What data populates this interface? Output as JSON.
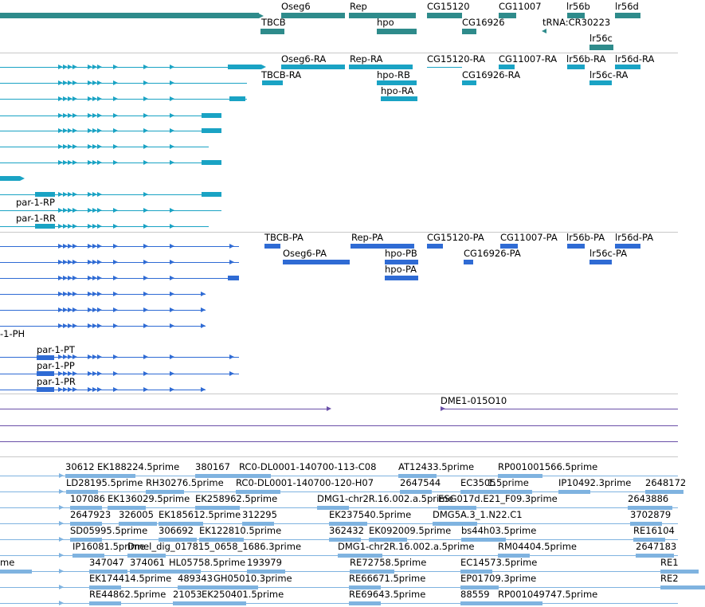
{
  "colors": {
    "gene": "#2e8b8b",
    "transcript": "#1aa3c4",
    "protein": "#2f6bd4",
    "clone": "#6a4fa8",
    "est": "#7fb3e0",
    "separator": "#c8c8c8"
  },
  "tracks": [
    {
      "name": "gene-track",
      "color": "gene",
      "features": [
        {
          "label": "Oseg6"
        },
        {
          "label": "Rep"
        },
        {
          "label": "CG15120"
        },
        {
          "label": "CG11007"
        },
        {
          "label": "lr56b"
        },
        {
          "label": "lr56d"
        },
        {
          "label": "TBCB"
        },
        {
          "label": "hpo"
        },
        {
          "label": "CG16926"
        },
        {
          "label": "tRNA:CR30223"
        },
        {
          "label": "lr56c"
        }
      ]
    },
    {
      "name": "transcript-track",
      "color": "transcript",
      "features": [
        {
          "label": "Oseg6-RA"
        },
        {
          "label": "Rep-RA"
        },
        {
          "label": "CG15120-RA"
        },
        {
          "label": "CG11007-RA"
        },
        {
          "label": "lr56b-RA"
        },
        {
          "label": "lr56d-RA"
        },
        {
          "label": "TBCB-RA"
        },
        {
          "label": "hpo-RB"
        },
        {
          "label": "CG16926-RA"
        },
        {
          "label": "lr56c-RA"
        },
        {
          "label": "hpo-RA"
        },
        {
          "label": "par-1-RP"
        },
        {
          "label": "par-1-RR"
        }
      ]
    },
    {
      "name": "protein-track",
      "color": "protein",
      "features": [
        {
          "label": "TBCB-PA"
        },
        {
          "label": "Rep-PA"
        },
        {
          "label": "CG15120-PA"
        },
        {
          "label": "CG11007-PA"
        },
        {
          "label": "lr56b-PA"
        },
        {
          "label": "lr56d-PA"
        },
        {
          "label": "Oseg6-PA"
        },
        {
          "label": "hpo-PB"
        },
        {
          "label": "CG16926-PA"
        },
        {
          "label": "lr56c-PA"
        },
        {
          "label": "hpo-PA"
        },
        {
          "label": "-1-PH"
        },
        {
          "label": "par-1-PT"
        },
        {
          "label": "par-1-PP"
        },
        {
          "label": "par-1-PR"
        }
      ]
    },
    {
      "name": "clone-track",
      "color": "clone",
      "features": [
        {
          "label": "DME1-015O10"
        }
      ]
    },
    {
      "name": "est-track",
      "color": "est",
      "rows": [
        [
          "30612",
          "EK188224.5prime",
          "380167",
          "RC0-DL0001-140700-113-C08",
          "AT12433.5prime",
          "RP001001566.5prime"
        ],
        [
          "LD28195.5prime",
          "RH30276.5prime",
          "RC0-DL0001-140700-120-H07",
          "2647544",
          "EC3505",
          "1.5prime",
          "IP10492.3prime",
          "2648172"
        ],
        [
          "107086",
          "EK136029.5prime",
          "EK258962.5prime",
          "DMG1-chr2R.16.002.a.5prime",
          "ESG017d.E21_F09.3prime",
          "2643886"
        ],
        [
          "2647923",
          "326005",
          "EK185612.5prime",
          "312295",
          "EK237540.5prime",
          "DMG5A.3_1.N22.C1",
          "3702879"
        ],
        [
          "SD05995.5prime",
          "306692",
          "EK122810.5prime",
          "362432",
          "EK092009.5prime",
          "bs44h03.5prime",
          "RE16104"
        ],
        [
          "IP16081.5prime",
          "Dmel_dig_017815_0658_1686.3prime",
          "DMG1-chr2R.16.002.a.5prime",
          "RM04404.5prime",
          "2647183"
        ],
        [
          "me",
          "347047",
          "374061",
          "HL05758.5prime",
          "193979",
          "RE72758.5prime",
          "EC14573.5prime",
          "RE1"
        ],
        [
          "EK174414.5prime",
          "489343",
          "GH05010.3prime",
          "RE66671.5prime",
          "EP01709.3prime",
          "RE2"
        ],
        [
          "RE44862.5prime",
          "21053",
          "EK250401.5prime",
          "RE69643.5prime",
          "88559",
          "RP001049747.5prime"
        ]
      ]
    }
  ]
}
